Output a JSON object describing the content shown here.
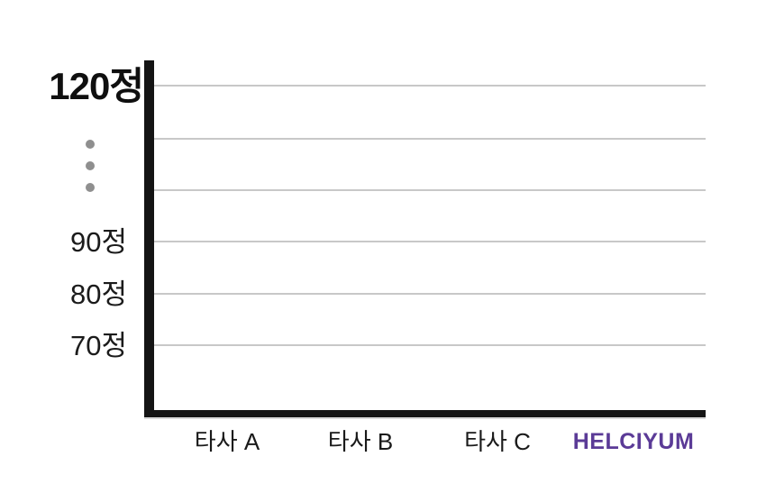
{
  "chart_data": {
    "type": "bar",
    "title": "",
    "categories": [
      "타사 A",
      "타사 B",
      "타사 C",
      "HELCIYUM"
    ],
    "series": [],
    "bars_drawn": false,
    "xlabel": "",
    "ylabel": "",
    "y_unit": "정",
    "y_tick_labels_top_to_bottom": [
      "120정",
      "90정",
      "80정",
      "70정"
    ],
    "y_axis_break_between": [
      "120정",
      "90정"
    ],
    "grid": true,
    "gridline_count": 6,
    "legend": false
  },
  "yaxis": {
    "tick_120": "120정",
    "tick_90": "90정",
    "tick_80": "80정",
    "tick_70": "70정"
  },
  "xaxis": {
    "cat_a": "타사 A",
    "cat_b": "타사 B",
    "cat_c": "타사 C",
    "brand": "HELCIYUM"
  },
  "colors": {
    "axis": "#141414",
    "gridline": "#c8c8c8",
    "break_dots": "#8f8f8f",
    "tick_text": "#1b1b1b",
    "brand_purple": "#5b3b97",
    "background": "#ffffff"
  }
}
